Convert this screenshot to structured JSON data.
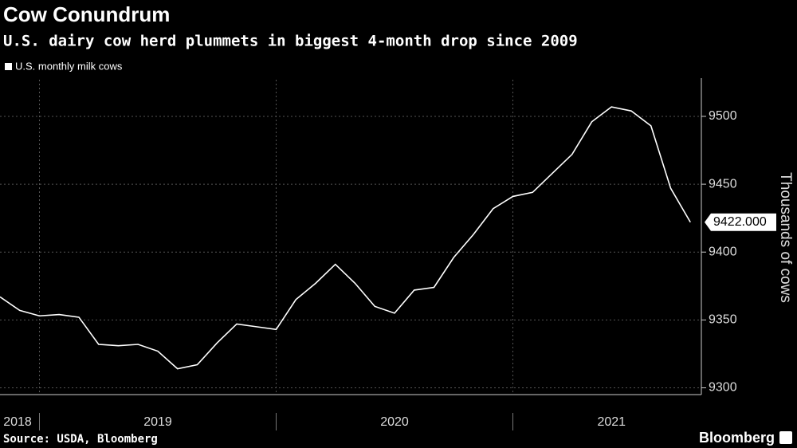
{
  "chart_data": {
    "type": "line",
    "title": "Cow Conundrum",
    "subtitle": "U.S. dairy cow herd plummets in biggest 4-month drop since 2009",
    "y_label": "Thousands of cows",
    "source": "Source: USDA, Bloomberg",
    "brand": "Bloomberg",
    "categories": [
      null,
      null,
      null,
      null,
      null,
      null,
      null,
      null,
      null,
      null,
      null,
      null,
      null,
      null,
      null,
      null,
      null,
      null,
      null,
      null,
      null,
      null,
      null,
      null,
      null,
      null,
      null,
      null,
      null,
      null,
      null,
      null,
      null,
      null,
      null,
      null
    ],
    "xticks": [
      2,
      14,
      26
    ],
    "xlabels": [
      {
        "value": 0.8,
        "label": "2018"
      },
      {
        "value": 8,
        "label": "2019"
      },
      {
        "value": 20,
        "label": "2020"
      },
      {
        "value": 31,
        "label": "2021"
      }
    ],
    "series": [
      {
        "name": "U.S. monthly milk cows",
        "color": "#ffffff",
        "values": [
          9367,
          9357,
          9353,
          9354,
          9352,
          9332,
          9331,
          9332,
          9327,
          9314,
          9317,
          9333,
          9347,
          9345,
          9343,
          9365,
          9377,
          9391,
          9377,
          9360,
          9355,
          9372,
          9374,
          9396,
          9413,
          9432,
          9441,
          9444,
          9458,
          9472,
          9496,
          9507,
          9504,
          9493,
          9447,
          9422
        ],
        "last_label": "9422.000"
      }
    ],
    "ylim": [
      9295,
      9527
    ],
    "yticks": [
      9300,
      9350,
      9400,
      9450,
      9500
    ],
    "grid": true
  }
}
